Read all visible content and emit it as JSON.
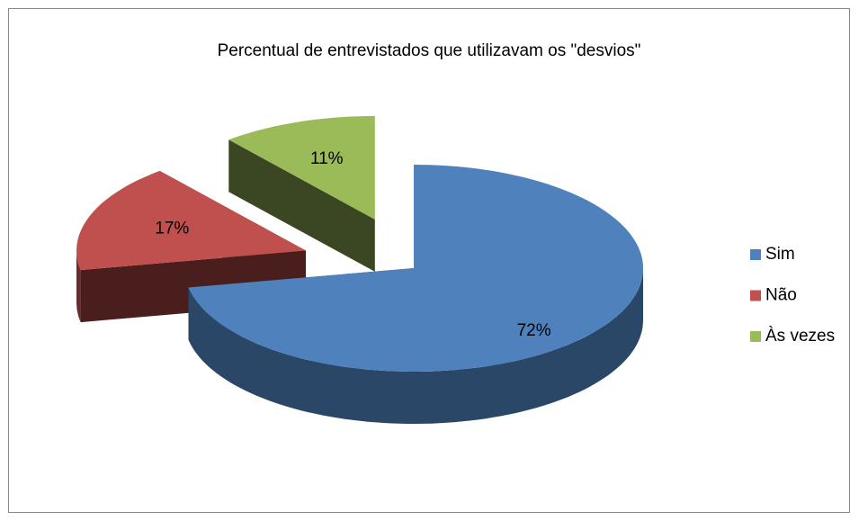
{
  "chart_data": {
    "type": "pie",
    "title": "Percentual de entrevistados que utilizavam os \"desvios\"",
    "categories": [
      "Sim",
      "Não",
      "Às vezes"
    ],
    "values": [
      72,
      17,
      11
    ],
    "value_labels": [
      "72%",
      "17%",
      "11%"
    ],
    "colors": [
      "#4f81bd",
      "#c0504d",
      "#9bbb59"
    ],
    "legend": "right"
  }
}
